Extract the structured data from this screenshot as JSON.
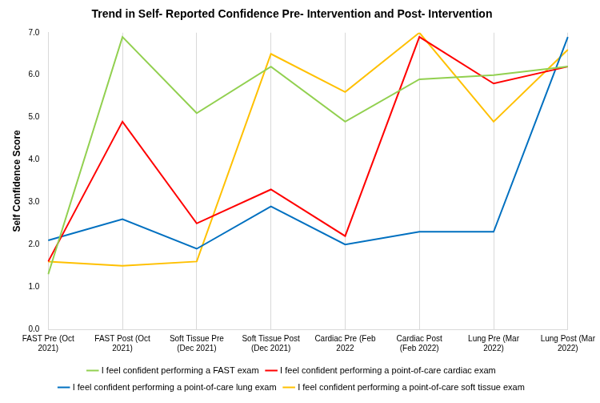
{
  "chart_data": {
    "type": "line",
    "title": "Trend in Self- Reported Confidence Pre- Intervention and Post- Intervention",
    "y_label": "Self Confidence Score",
    "categories": [
      "FAST Pre (Oct 2021)",
      "FAST Post (Oct 2021)",
      "Soft Tissue Pre (Dec 2021)",
      "Soft Tissue Post (Dec 2021)",
      "Cardiac Pre (Feb 2022",
      "Cardiac Post (Feb 2022)",
      "Lung Pre (Mar 2022)",
      "Lung Post (Mar 2022)"
    ],
    "series": [
      {
        "name": "I feel confident performing a FAST exam",
        "color": "#92d050",
        "values": [
          1.3,
          6.9,
          5.1,
          6.2,
          4.9,
          5.9,
          6.0,
          6.2
        ]
      },
      {
        "name": "I feel confident performing a point-of-care cardiac exam",
        "color": "#ff0000",
        "values": [
          1.6,
          4.9,
          2.5,
          3.3,
          2.2,
          6.9,
          5.8,
          6.2
        ]
      },
      {
        "name": "I feel confident performing a point-of-care lung exam",
        "color": "#0070c0",
        "values": [
          2.1,
          2.6,
          1.9,
          2.9,
          2.0,
          2.3,
          2.3,
          6.9
        ]
      },
      {
        "name": "I feel confident performing a point-of-care soft tissue exam",
        "color": "#ffc000",
        "values": [
          1.6,
          1.5,
          1.6,
          6.5,
          5.6,
          7.0,
          4.9,
          6.6
        ]
      }
    ],
    "ylim": [
      0,
      7
    ],
    "yticks": [
      {
        "value": 0,
        "label": "0.0"
      },
      {
        "value": 1,
        "label": "1.0"
      },
      {
        "value": 2,
        "label": "2.0"
      },
      {
        "value": 3,
        "label": "3.0"
      },
      {
        "value": 4,
        "label": "4.0"
      },
      {
        "value": 5,
        "label": "5.0"
      },
      {
        "value": 6,
        "label": "6.0"
      },
      {
        "value": 7,
        "label": "7.0"
      }
    ],
    "grid": "x",
    "legend": "bottom",
    "marker": "none",
    "line_style": "solid"
  }
}
